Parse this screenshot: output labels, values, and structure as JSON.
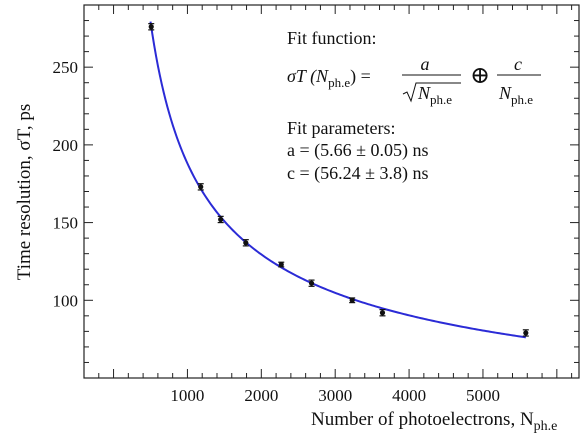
{
  "chart_data": {
    "type": "scatter",
    "xlabel": "Number of photoelectrons, N",
    "xlabel_sub": "ph.e",
    "ylabel": "Time resolution, σT, ps",
    "xlim": [
      -400,
      6300
    ],
    "ylim": [
      50,
      290
    ],
    "x_ticks": [
      1000,
      2000,
      3000,
      4000,
      5000
    ],
    "y_ticks": [
      100,
      150,
      200,
      250
    ],
    "grid": false,
    "points": [
      {
        "x": 510,
        "y": 276,
        "err": 2
      },
      {
        "x": 1180,
        "y": 173,
        "err": 2
      },
      {
        "x": 1450,
        "y": 152,
        "err": 2
      },
      {
        "x": 1790,
        "y": 137,
        "err": 2
      },
      {
        "x": 2270,
        "y": 123,
        "err": 1.5
      },
      {
        "x": 2680,
        "y": 111,
        "err": 2
      },
      {
        "x": 3230,
        "y": 100,
        "err": 1.5
      },
      {
        "x": 3640,
        "y": 92,
        "err": 2
      },
      {
        "x": 5580,
        "y": 79,
        "err": 2
      }
    ],
    "fit": {
      "name": "fit",
      "color": "#2b2bd6",
      "x_from": 500,
      "x_to": 5580
    }
  },
  "annotation": {
    "fit_function_label": "Fit function:",
    "formula_lhs": "σT (N",
    "formula_sub": "ph.e",
    "formula_eq": ") =",
    "formula_a": "a",
    "formula_sqrt_n": "N",
    "formula_oplus": "⊕",
    "formula_c": "c",
    "formula_den_n": "N",
    "fit_parameters_label": "Fit parameters:",
    "param_a": "a = (5.66 ± 0.05) ns",
    "param_c": "c = (56.24 ± 3.8) ns"
  }
}
